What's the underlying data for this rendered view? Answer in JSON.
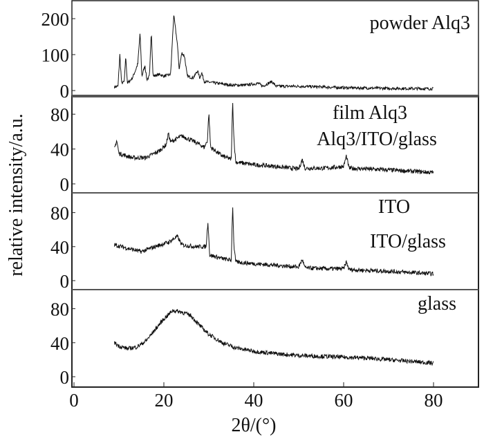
{
  "chart_data": {
    "type": "line",
    "xlabel": "2θ/(°)",
    "ylabel": "relative intensity/a.u.",
    "xlim": [
      0,
      92
    ],
    "xticks": [
      0,
      20,
      40,
      60,
      80
    ],
    "grid": false,
    "panels": [
      {
        "name": "powder Alq3",
        "labels": [
          "powder Alq3"
        ],
        "yticks": [
          0,
          100,
          200
        ],
        "ylim": [
          -20,
          250
        ],
        "points": [
          [
            9,
            10
          ],
          [
            9.8,
            12
          ],
          [
            10.2,
            100
          ],
          [
            10.6,
            20
          ],
          [
            11.2,
            25
          ],
          [
            11.5,
            95
          ],
          [
            11.9,
            20
          ],
          [
            13,
            35
          ],
          [
            13.8,
            60
          ],
          [
            14.2,
            75
          ],
          [
            14.7,
            160
          ],
          [
            15.1,
            40
          ],
          [
            15.8,
            70
          ],
          [
            16.2,
            30
          ],
          [
            16.8,
            40
          ],
          [
            17.2,
            165
          ],
          [
            17.6,
            40
          ],
          [
            19,
            45
          ],
          [
            20,
            40
          ],
          [
            21.5,
            45
          ],
          [
            22.2,
            210
          ],
          [
            22.6,
            170
          ],
          [
            23,
            130
          ],
          [
            23.4,
            60
          ],
          [
            24,
            105
          ],
          [
            24.6,
            95
          ],
          [
            25.2,
            40
          ],
          [
            26.5,
            35
          ],
          [
            27.5,
            55
          ],
          [
            28,
            35
          ],
          [
            28.4,
            50
          ],
          [
            29,
            25
          ],
          [
            32,
            20
          ],
          [
            35,
            15
          ],
          [
            38,
            15
          ],
          [
            41,
            20
          ],
          [
            42,
            12
          ],
          [
            44,
            25
          ],
          [
            45,
            12
          ],
          [
            50,
            12
          ],
          [
            55,
            10
          ],
          [
            60,
            8
          ],
          [
            70,
            6
          ],
          [
            80,
            5
          ]
        ]
      },
      {
        "name": "film Alq3",
        "labels": [
          "film Alq3",
          "Alq3/ITO/glass"
        ],
        "yticks": [
          0,
          40,
          80
        ],
        "ylim": [
          -10,
          100
        ],
        "points": [
          [
            9,
            40
          ],
          [
            9.5,
            50
          ],
          [
            10,
            35
          ],
          [
            13,
            30
          ],
          [
            16,
            30
          ],
          [
            19,
            38
          ],
          [
            20.5,
            45
          ],
          [
            21,
            58
          ],
          [
            21.5,
            48
          ],
          [
            24,
            55
          ],
          [
            27,
            48
          ],
          [
            29,
            42
          ],
          [
            29.7,
            50
          ],
          [
            30,
            82
          ],
          [
            30.4,
            42
          ],
          [
            33,
            32
          ],
          [
            35,
            28
          ],
          [
            35.3,
            95
          ],
          [
            35.6,
            50
          ],
          [
            36,
            25
          ],
          [
            40,
            22
          ],
          [
            45,
            20
          ],
          [
            50,
            17
          ],
          [
            50.8,
            28
          ],
          [
            51.4,
            18
          ],
          [
            56,
            18
          ],
          [
            60,
            20
          ],
          [
            60.6,
            32
          ],
          [
            61.2,
            18
          ],
          [
            70,
            16
          ],
          [
            80,
            13
          ]
        ]
      },
      {
        "name": "ITO",
        "labels": [
          "ITO",
          "ITO/glass"
        ],
        "yticks": [
          0,
          40,
          80
        ],
        "ylim": [
          -10,
          100
        ],
        "points": [
          [
            9,
            42
          ],
          [
            12,
            38
          ],
          [
            15,
            34
          ],
          [
            18,
            40
          ],
          [
            21,
            45
          ],
          [
            23,
            52
          ],
          [
            24,
            42
          ],
          [
            27,
            40
          ],
          [
            29.4,
            40
          ],
          [
            29.8,
            70
          ],
          [
            30.2,
            30
          ],
          [
            33,
            26
          ],
          [
            35,
            24
          ],
          [
            35.3,
            90
          ],
          [
            35.6,
            40
          ],
          [
            36,
            22
          ],
          [
            40,
            20
          ],
          [
            45,
            18
          ],
          [
            50,
            16
          ],
          [
            50.8,
            25
          ],
          [
            51.4,
            15
          ],
          [
            56,
            14
          ],
          [
            60,
            14
          ],
          [
            60.6,
            22
          ],
          [
            61.2,
            13
          ],
          [
            70,
            11
          ],
          [
            80,
            8
          ]
        ]
      },
      {
        "name": "glass",
        "labels": [
          "glass"
        ],
        "yticks": [
          0,
          40,
          80
        ],
        "ylim": [
          -10,
          100
        ],
        "points": [
          [
            9,
            40
          ],
          [
            10,
            36
          ],
          [
            12,
            33
          ],
          [
            14,
            35
          ],
          [
            16,
            42
          ],
          [
            18,
            55
          ],
          [
            20,
            68
          ],
          [
            22,
            78
          ],
          [
            24,
            76
          ],
          [
            26,
            72
          ],
          [
            28,
            60
          ],
          [
            30,
            50
          ],
          [
            33,
            40
          ],
          [
            36,
            34
          ],
          [
            40,
            30
          ],
          [
            45,
            27
          ],
          [
            50,
            25
          ],
          [
            55,
            24
          ],
          [
            60,
            23
          ],
          [
            65,
            22
          ],
          [
            70,
            20
          ],
          [
            75,
            18
          ],
          [
            80,
            16
          ]
        ]
      }
    ]
  }
}
